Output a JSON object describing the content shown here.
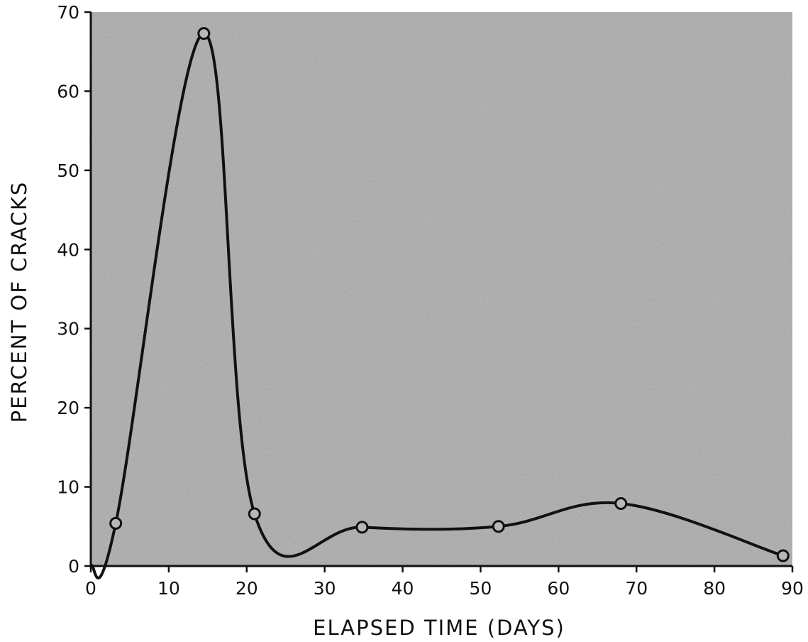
{
  "chart_data": {
    "type": "line",
    "title": "",
    "xlabel": "ELAPSED TIME (DAYS)",
    "ylabel": "PERCENT OF CRACKS",
    "xlim": [
      0,
      90
    ],
    "ylim": [
      0,
      70
    ],
    "x_ticks": [
      0,
      10,
      20,
      30,
      40,
      50,
      60,
      70,
      80,
      90
    ],
    "y_ticks": [
      0,
      10,
      20,
      30,
      40,
      50,
      60,
      70
    ],
    "grid": false,
    "plot_background": "#a9a9a9",
    "line_color": "#111111",
    "series": [
      {
        "markers": true,
        "points": [
          {
            "x": 3.2,
            "y": 5.4
          },
          {
            "x": 14.5,
            "y": 67.3
          },
          {
            "x": 21.0,
            "y": 6.6
          },
          {
            "x": 34.8,
            "y": 4.9
          },
          {
            "x": 52.3,
            "y": 5.0
          },
          {
            "x": 68.0,
            "y": 7.9
          },
          {
            "x": 88.8,
            "y": 1.3
          }
        ]
      }
    ]
  }
}
